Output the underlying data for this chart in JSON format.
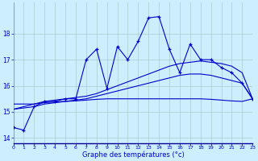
{
  "xlabel": "Graphe des températures (°c)",
  "background_color": "#cceeff",
  "grid_color": "#aacccc",
  "line_color": "#0000cc",
  "hours": [
    0,
    1,
    2,
    3,
    4,
    5,
    6,
    7,
    8,
    9,
    10,
    11,
    12,
    13,
    14,
    15,
    16,
    17,
    18,
    19,
    20,
    21,
    22,
    23
  ],
  "x_labels": [
    "0",
    "1",
    "2",
    "3",
    "4",
    "5",
    "6",
    "7",
    "8",
    "9",
    "10",
    "11",
    "12",
    "13",
    "14",
    "15",
    "16",
    "17",
    "18",
    "19",
    "20",
    "21",
    "22",
    "23"
  ],
  "temp_main": [
    14.4,
    14.3,
    15.2,
    15.4,
    15.4,
    15.5,
    15.5,
    17.0,
    17.4,
    15.9,
    17.5,
    17.0,
    17.7,
    18.6,
    18.65,
    17.4,
    16.5,
    17.6,
    17.0,
    17.0,
    16.7,
    16.5,
    16.1,
    15.5
  ],
  "temp_line1": [
    15.1,
    15.2,
    15.3,
    15.4,
    15.45,
    15.5,
    15.55,
    15.6,
    15.7,
    15.85,
    16.0,
    16.15,
    16.3,
    16.45,
    16.6,
    16.75,
    16.85,
    16.9,
    16.95,
    16.9,
    16.85,
    16.75,
    16.5,
    15.5
  ],
  "temp_line2": [
    15.1,
    15.15,
    15.2,
    15.3,
    15.35,
    15.4,
    15.45,
    15.5,
    15.6,
    15.7,
    15.8,
    15.9,
    16.0,
    16.1,
    16.2,
    16.3,
    16.4,
    16.45,
    16.45,
    16.4,
    16.3,
    16.2,
    16.1,
    15.5
  ],
  "temp_line3": [
    15.3,
    15.3,
    15.3,
    15.35,
    15.38,
    15.4,
    15.42,
    15.45,
    15.48,
    15.5,
    15.5,
    15.5,
    15.5,
    15.5,
    15.5,
    15.5,
    15.5,
    15.5,
    15.5,
    15.48,
    15.45,
    15.42,
    15.4,
    15.5
  ],
  "ylim": [
    13.8,
    19.2
  ],
  "yticks": [
    14,
    15,
    16,
    17,
    18
  ],
  "xlim": [
    0,
    23
  ]
}
